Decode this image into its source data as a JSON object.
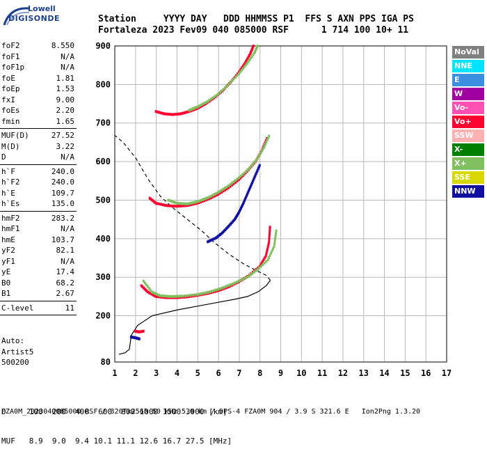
{
  "logo": {
    "top": "Lowell",
    "bottom": "DIGISONDE"
  },
  "header": {
    "line1": "Station     YYYY DAY   DDD HHMMSS P1  FFS S AXN PPS IGA PS",
    "line2": "Fortaleza 2023 Fev09 040 085000 RSF      1 714 100 10+ 11"
  },
  "params_group1": [
    {
      "name": "foF2",
      "value": "8.550"
    },
    {
      "name": "foF1",
      "value": "N/A"
    },
    {
      "name": "foF1p",
      "value": "N/A"
    },
    {
      "name": "foE",
      "value": "1.81"
    },
    {
      "name": "foEp",
      "value": "1.53"
    },
    {
      "name": "fxI",
      "value": "9.00"
    },
    {
      "name": "foEs",
      "value": "2.20"
    },
    {
      "name": "fmin",
      "value": "1.65"
    }
  ],
  "params_group2": [
    {
      "name": "MUF(D)",
      "value": "27.52"
    },
    {
      "name": "M(D)",
      "value": "3.22"
    },
    {
      "name": "D",
      "value": "N/A"
    }
  ],
  "params_group3": [
    {
      "name": "h`F",
      "value": "240.0"
    },
    {
      "name": "h`F2",
      "value": "240.0"
    },
    {
      "name": "h`E",
      "value": "109.7"
    },
    {
      "name": "h`Es",
      "value": "135.0"
    }
  ],
  "params_group4": [
    {
      "name": "hmF2",
      "value": "283.2"
    },
    {
      "name": "hmF1",
      "value": "N/A"
    },
    {
      "name": "hmE",
      "value": "103.7"
    },
    {
      "name": "yF2",
      "value": "82.1"
    },
    {
      "name": "yF1",
      "value": "N/A"
    },
    {
      "name": "yE",
      "value": "17.4"
    },
    {
      "name": "B0",
      "value": "68.2"
    },
    {
      "name": "B1",
      "value": "2.67"
    }
  ],
  "params_group5": [
    {
      "name": "C-level",
      "value": "11"
    }
  ],
  "auto": [
    "Auto:",
    "Artist5",
    "500200"
  ],
  "legend": [
    {
      "label": "NoVal",
      "color": "#808080"
    },
    {
      "label": "NNE",
      "color": "#00e5ff"
    },
    {
      "label": "E",
      "color": "#3b8fe0"
    },
    {
      "label": "W",
      "color": "#a000a0"
    },
    {
      "label": "Vo-",
      "color": "#ff50b4"
    },
    {
      "label": "Vo+",
      "color": "#ff0030"
    },
    {
      "label": "SSW",
      "color": "#ffb0b0"
    },
    {
      "label": "X-",
      "color": "#008000"
    },
    {
      "label": "X+",
      "color": "#80c060"
    },
    {
      "label": "SSE",
      "color": "#d8d800"
    },
    {
      "label": "NNW",
      "color": "#1010a0"
    }
  ],
  "footer": {
    "d_row": "D     100  200  400  600  800 1000 1500 3000 [km]",
    "muf_row": "MUF   8.9  9.0  9.4 10.1 11.1 12.6 16.7 27.5 [MHz]"
  },
  "bottom_bar": "FZA0M_2023040085000.RSF / 320fx256h 50 kHz 5.0 km / DPS-4 FZA0M 904 / 3.9 S 321.6 E   Ion2Png 1.3.20",
  "chart_data": {
    "type": "scatter",
    "title": "",
    "xlabel": "",
    "ylabel": "",
    "xlim": [
      1,
      17
    ],
    "ylim": [
      80,
      900
    ],
    "x_ticks": [
      1,
      2,
      3,
      4,
      5,
      6,
      7,
      8,
      9,
      10,
      11,
      12,
      13,
      14,
      15,
      16,
      17
    ],
    "y_ticks": [
      80,
      200,
      300,
      400,
      500,
      600,
      700,
      800,
      900
    ],
    "grid": true,
    "legend_position": "right",
    "traces": [
      {
        "name": "Vo+",
        "points": [
          [
            2.3,
            278
          ],
          [
            2.6,
            262
          ],
          [
            3.0,
            250
          ],
          [
            3.5,
            247
          ],
          [
            4.0,
            247
          ],
          [
            4.5,
            249
          ],
          [
            5.0,
            253
          ],
          [
            5.5,
            258
          ],
          [
            6.0,
            265
          ],
          [
            6.5,
            275
          ],
          [
            7.0,
            288
          ],
          [
            7.5,
            305
          ],
          [
            8.0,
            328
          ],
          [
            8.3,
            355
          ],
          [
            8.45,
            390
          ],
          [
            8.5,
            430
          ]
        ]
      },
      {
        "name": "X+",
        "points": [
          [
            2.4,
            290
          ],
          [
            2.8,
            262
          ],
          [
            3.2,
            252
          ],
          [
            3.7,
            250
          ],
          [
            4.3,
            251
          ],
          [
            5.0,
            255
          ],
          [
            5.6,
            262
          ],
          [
            6.2,
            272
          ],
          [
            6.8,
            285
          ],
          [
            7.4,
            300
          ],
          [
            7.9,
            320
          ],
          [
            8.4,
            345
          ],
          [
            8.7,
            380
          ],
          [
            8.8,
            420
          ]
        ]
      },
      {
        "name": "Vo+",
        "points": [
          [
            2.7,
            505
          ],
          [
            3.0,
            492
          ],
          [
            3.5,
            486
          ],
          [
            4.0,
            484
          ],
          [
            4.5,
            486
          ],
          [
            5.0,
            492
          ],
          [
            5.5,
            502
          ],
          [
            6.0,
            515
          ],
          [
            6.5,
            532
          ],
          [
            7.0,
            553
          ],
          [
            7.4,
            575
          ],
          [
            7.8,
            600
          ],
          [
            8.1,
            628
          ],
          [
            8.35,
            660
          ]
        ]
      },
      {
        "name": "X+",
        "points": [
          [
            3.6,
            500
          ],
          [
            4.0,
            492
          ],
          [
            4.5,
            490
          ],
          [
            5.0,
            496
          ],
          [
            5.5,
            506
          ],
          [
            6.0,
            520
          ],
          [
            6.5,
            537
          ],
          [
            7.0,
            558
          ],
          [
            7.5,
            582
          ],
          [
            7.9,
            608
          ],
          [
            8.2,
            636
          ],
          [
            8.45,
            666
          ]
        ]
      },
      {
        "name": "Vo+",
        "points": [
          [
            3.0,
            730
          ],
          [
            3.4,
            724
          ],
          [
            3.8,
            722
          ],
          [
            4.2,
            724
          ],
          [
            4.6,
            730
          ],
          [
            5.0,
            738
          ],
          [
            5.4,
            750
          ],
          [
            5.8,
            765
          ],
          [
            6.2,
            783
          ],
          [
            6.6,
            806
          ],
          [
            7.0,
            832
          ],
          [
            7.3,
            856
          ],
          [
            7.55,
            880
          ],
          [
            7.7,
            900
          ]
        ]
      },
      {
        "name": "X+",
        "points": [
          [
            4.6,
            733
          ],
          [
            5.0,
            742
          ],
          [
            5.5,
            756
          ],
          [
            6.0,
            775
          ],
          [
            6.5,
            800
          ],
          [
            7.0,
            828
          ],
          [
            7.4,
            855
          ],
          [
            7.75,
            882
          ],
          [
            7.9,
            900
          ]
        ]
      },
      {
        "name": "NNW",
        "points": [
          [
            5.5,
            392
          ],
          [
            5.9,
            402
          ],
          [
            6.2,
            415
          ],
          [
            6.5,
            432
          ],
          [
            6.8,
            450
          ],
          [
            7.0,
            468
          ],
          [
            7.2,
            490
          ],
          [
            7.4,
            515
          ],
          [
            7.6,
            540
          ],
          [
            7.8,
            565
          ],
          [
            8.0,
            590
          ]
        ]
      },
      {
        "name": "Vo+",
        "points": [
          [
            2.0,
            160
          ],
          [
            2.2,
            158
          ],
          [
            2.4,
            160
          ]
        ]
      },
      {
        "name": "NNW",
        "points": [
          [
            1.8,
            145
          ],
          [
            2.0,
            143
          ],
          [
            2.2,
            140
          ]
        ]
      }
    ],
    "profile_line": [
      [
        1.2,
        100
      ],
      [
        1.5,
        104
      ],
      [
        1.7,
        113
      ],
      [
        1.8,
        150
      ],
      [
        2.1,
        175
      ],
      [
        2.8,
        200
      ],
      [
        4.0,
        215
      ],
      [
        5.0,
        225
      ],
      [
        6.0,
        235
      ],
      [
        6.8,
        243
      ],
      [
        7.4,
        250
      ],
      [
        7.9,
        262
      ],
      [
        8.3,
        278
      ],
      [
        8.5,
        292
      ],
      [
        8.3,
        305
      ],
      [
        7.8,
        318
      ],
      [
        7.2,
        335
      ],
      [
        6.5,
        360
      ],
      [
        5.8,
        390
      ],
      [
        5.2,
        420
      ],
      [
        4.5,
        450
      ],
      [
        3.8,
        480
      ],
      [
        3.2,
        510
      ],
      [
        2.6,
        555
      ],
      [
        2.0,
        610
      ],
      [
        1.4,
        650
      ],
      [
        1.0,
        668
      ]
    ]
  }
}
